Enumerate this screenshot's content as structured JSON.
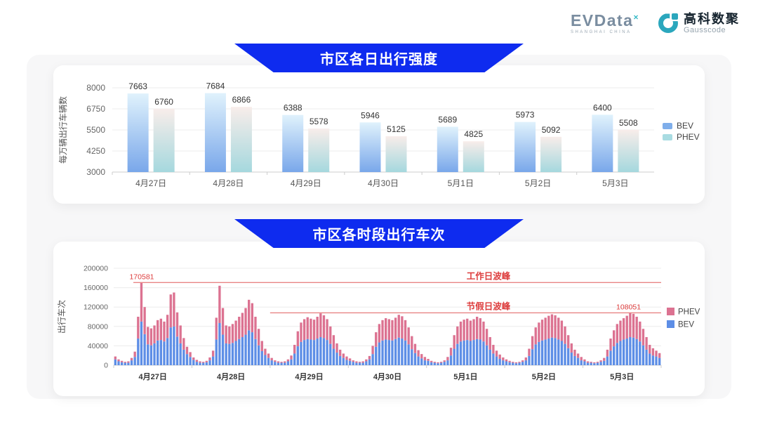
{
  "logo": {
    "evdata_text": "EVData",
    "evdata_sup": "×",
    "evdata_tagline": "SHANGHAI CHINA",
    "brand_cn": "高科数聚",
    "brand_en": "Gausscode"
  },
  "colors": {
    "banner_blue": "#0e2bef",
    "bev_grad_top": "#e0f2fc",
    "bev_grad_bottom": "#79a7ea",
    "phev_grad_top": "#f8edea",
    "phev_grad_bottom": "#a5d8de",
    "legend1_bev": "#7faeea",
    "legend1_phev": "#a9dce2",
    "bar_bev": "#5d8ee6",
    "bar_phev": "#dc7291",
    "annotation_text_red": "#dd3c3c",
    "annotation_line_red": "#e88484",
    "grid": "#ececec",
    "axis_line": "#cccccc",
    "axis_text": "#666666",
    "value_label": "#333333",
    "legend_text": "#444444"
  },
  "chart_data": [
    {
      "type": "bar",
      "title": "市区各日出行强度",
      "ylabel": "每万辆出行车辆数",
      "categories": [
        "4月27日",
        "4月28日",
        "4月29日",
        "4月30日",
        "5月1日",
        "5月2日",
        "5月3日"
      ],
      "series": [
        {
          "name": "BEV",
          "values": [
            7663,
            7684,
            6388,
            5946,
            5689,
            5973,
            6400
          ]
        },
        {
          "name": "PHEV",
          "values": [
            6760,
            6866,
            5578,
            5125,
            4825,
            5092,
            5508
          ]
        }
      ],
      "ylim": [
        3000,
        8000
      ],
      "yticks": [
        3000,
        4250,
        5500,
        6750,
        8000
      ],
      "grid": true,
      "legend_position": "right",
      "legend": [
        "BEV",
        "PHEV"
      ]
    },
    {
      "type": "stacked-bar",
      "title": "市区各时段出行车次",
      "ylabel": "出行车次",
      "categories": [
        "4月27日",
        "4月28日",
        "4月29日",
        "4月30日",
        "5月1日",
        "5月2日",
        "5月3日"
      ],
      "hours_per_day": 24,
      "ylim": [
        0,
        200000
      ],
      "yticks": [
        0,
        40000,
        80000,
        120000,
        160000,
        200000
      ],
      "grid": true,
      "legend_position": "right",
      "legend": [
        "PHEV",
        "BEV"
      ],
      "annotations": {
        "workday_peak": {
          "label": "工作日波峰",
          "value": 170581,
          "value_label": "170581"
        },
        "holiday_peak": {
          "label": "节假日波峰",
          "value": 108051,
          "value_label": "108051"
        }
      },
      "series": [
        {
          "name": "BEV",
          "values_by_day": [
            [
              12000,
              8000,
              6000,
              5000,
              5000,
              10000,
              17000,
              55000,
              90000,
              64000,
              43000,
              41000,
              45000,
              51000,
              52000,
              49000,
              56000,
              78000,
              80000,
              59000,
              45000,
              32000,
              23000,
              17000
            ],
            [
              11000,
              7000,
              5000,
              5000,
              6000,
              10000,
              18000,
              53000,
              87000,
              63000,
              45000,
              44000,
              46000,
              50000,
              54000,
              58000,
              63000,
              72000,
              68000,
              54000,
              41000,
              29000,
              21000,
              15000
            ],
            [
              10000,
              7000,
              5000,
              5000,
              5000,
              8000,
              12000,
              24000,
              39000,
              48000,
              52000,
              54000,
              53000,
              52000,
              55000,
              58000,
              56000,
              52000,
              44000,
              34000,
              26000,
              19000,
              15000,
              11000
            ],
            [
              9000,
              7000,
              5000,
              5000,
              5000,
              8000,
              12000,
              23000,
              38000,
              47000,
              51000,
              53000,
              52000,
              51000,
              54000,
              57000,
              55000,
              51000,
              43000,
              33000,
              25000,
              18000,
              14000,
              10000
            ],
            [
              9000,
              6000,
              5000,
              4000,
              5000,
              7000,
              10000,
              20000,
              34000,
              44000,
              49000,
              51000,
              52000,
              50000,
              52000,
              54000,
              53000,
              49000,
              41000,
              32000,
              24000,
              18000,
              13000,
              10000
            ],
            [
              8000,
              6000,
              5000,
              4000,
              5000,
              7000,
              10000,
              19000,
              33000,
              43000,
              48000,
              51000,
              53000,
              55000,
              57000,
              56000,
              53000,
              50000,
              44000,
              35000,
              26000,
              19000,
              15000,
              10000
            ],
            [
              8000,
              5000,
              5000,
              4000,
              5000,
              7000,
              9000,
              18000,
              30000,
              39000,
              46000,
              50000,
              53000,
              55000,
              58000,
              57000,
              54000,
              49000,
              41000,
              32000,
              24000,
              20000,
              18000,
              15000
            ]
          ]
        },
        {
          "name": "PHEV",
          "values_by_day": [
            [
              6000,
              4000,
              3000,
              2000,
              3000,
              5000,
              11000,
              45000,
              80581,
              56000,
              36000,
              35000,
              37000,
              42000,
              44000,
              41000,
              48000,
              68000,
              70000,
              50000,
              37000,
              24000,
              15000,
              10000
            ],
            [
              5000,
              4000,
              3000,
              2000,
              3000,
              6000,
              12000,
              45000,
              77000,
              55000,
              37000,
              36000,
              39000,
              42000,
              46000,
              50000,
              55000,
              63000,
              60000,
              46000,
              34000,
              21000,
              13000,
              9000
            ],
            [
              5000,
              3000,
              3000,
              2000,
              3000,
              4000,
              8000,
              18000,
              31000,
              40000,
              43000,
              45000,
              43000,
              42000,
              45000,
              49000,
              47000,
              43000,
              36000,
              28000,
              19000,
              13000,
              9000,
              7000
            ],
            [
              5000,
              3000,
              3000,
              2000,
              3000,
              4000,
              7000,
              17000,
              30000,
              38000,
              42000,
              44000,
              43000,
              42000,
              44000,
              47000,
              46000,
              42000,
              35000,
              27000,
              19000,
              13000,
              9000,
              7000
            ],
            [
              4000,
              3000,
              2000,
              2000,
              2000,
              3000,
              7000,
              16000,
              28000,
              36000,
              41000,
              43000,
              44000,
              42000,
              43000,
              46000,
              44000,
              41000,
              34000,
              26000,
              18000,
              12000,
              9000,
              6000
            ],
            [
              4000,
              3000,
              2000,
              2000,
              2000,
              3000,
              6000,
              15000,
              27000,
              35000,
              40000,
              43000,
              45000,
              47000,
              48000,
              47000,
              45000,
              42000,
              36000,
              27000,
              19000,
              13000,
              9000,
              7000
            ],
            [
              4000,
              3000,
              2000,
              2000,
              2000,
              3000,
              6000,
              14000,
              25000,
              33000,
              39000,
              42000,
              44000,
              47000,
              50051,
              49000,
              46000,
              41000,
              34000,
              26000,
              18000,
              15000,
              12000,
              10000
            ]
          ]
        }
      ]
    }
  ]
}
